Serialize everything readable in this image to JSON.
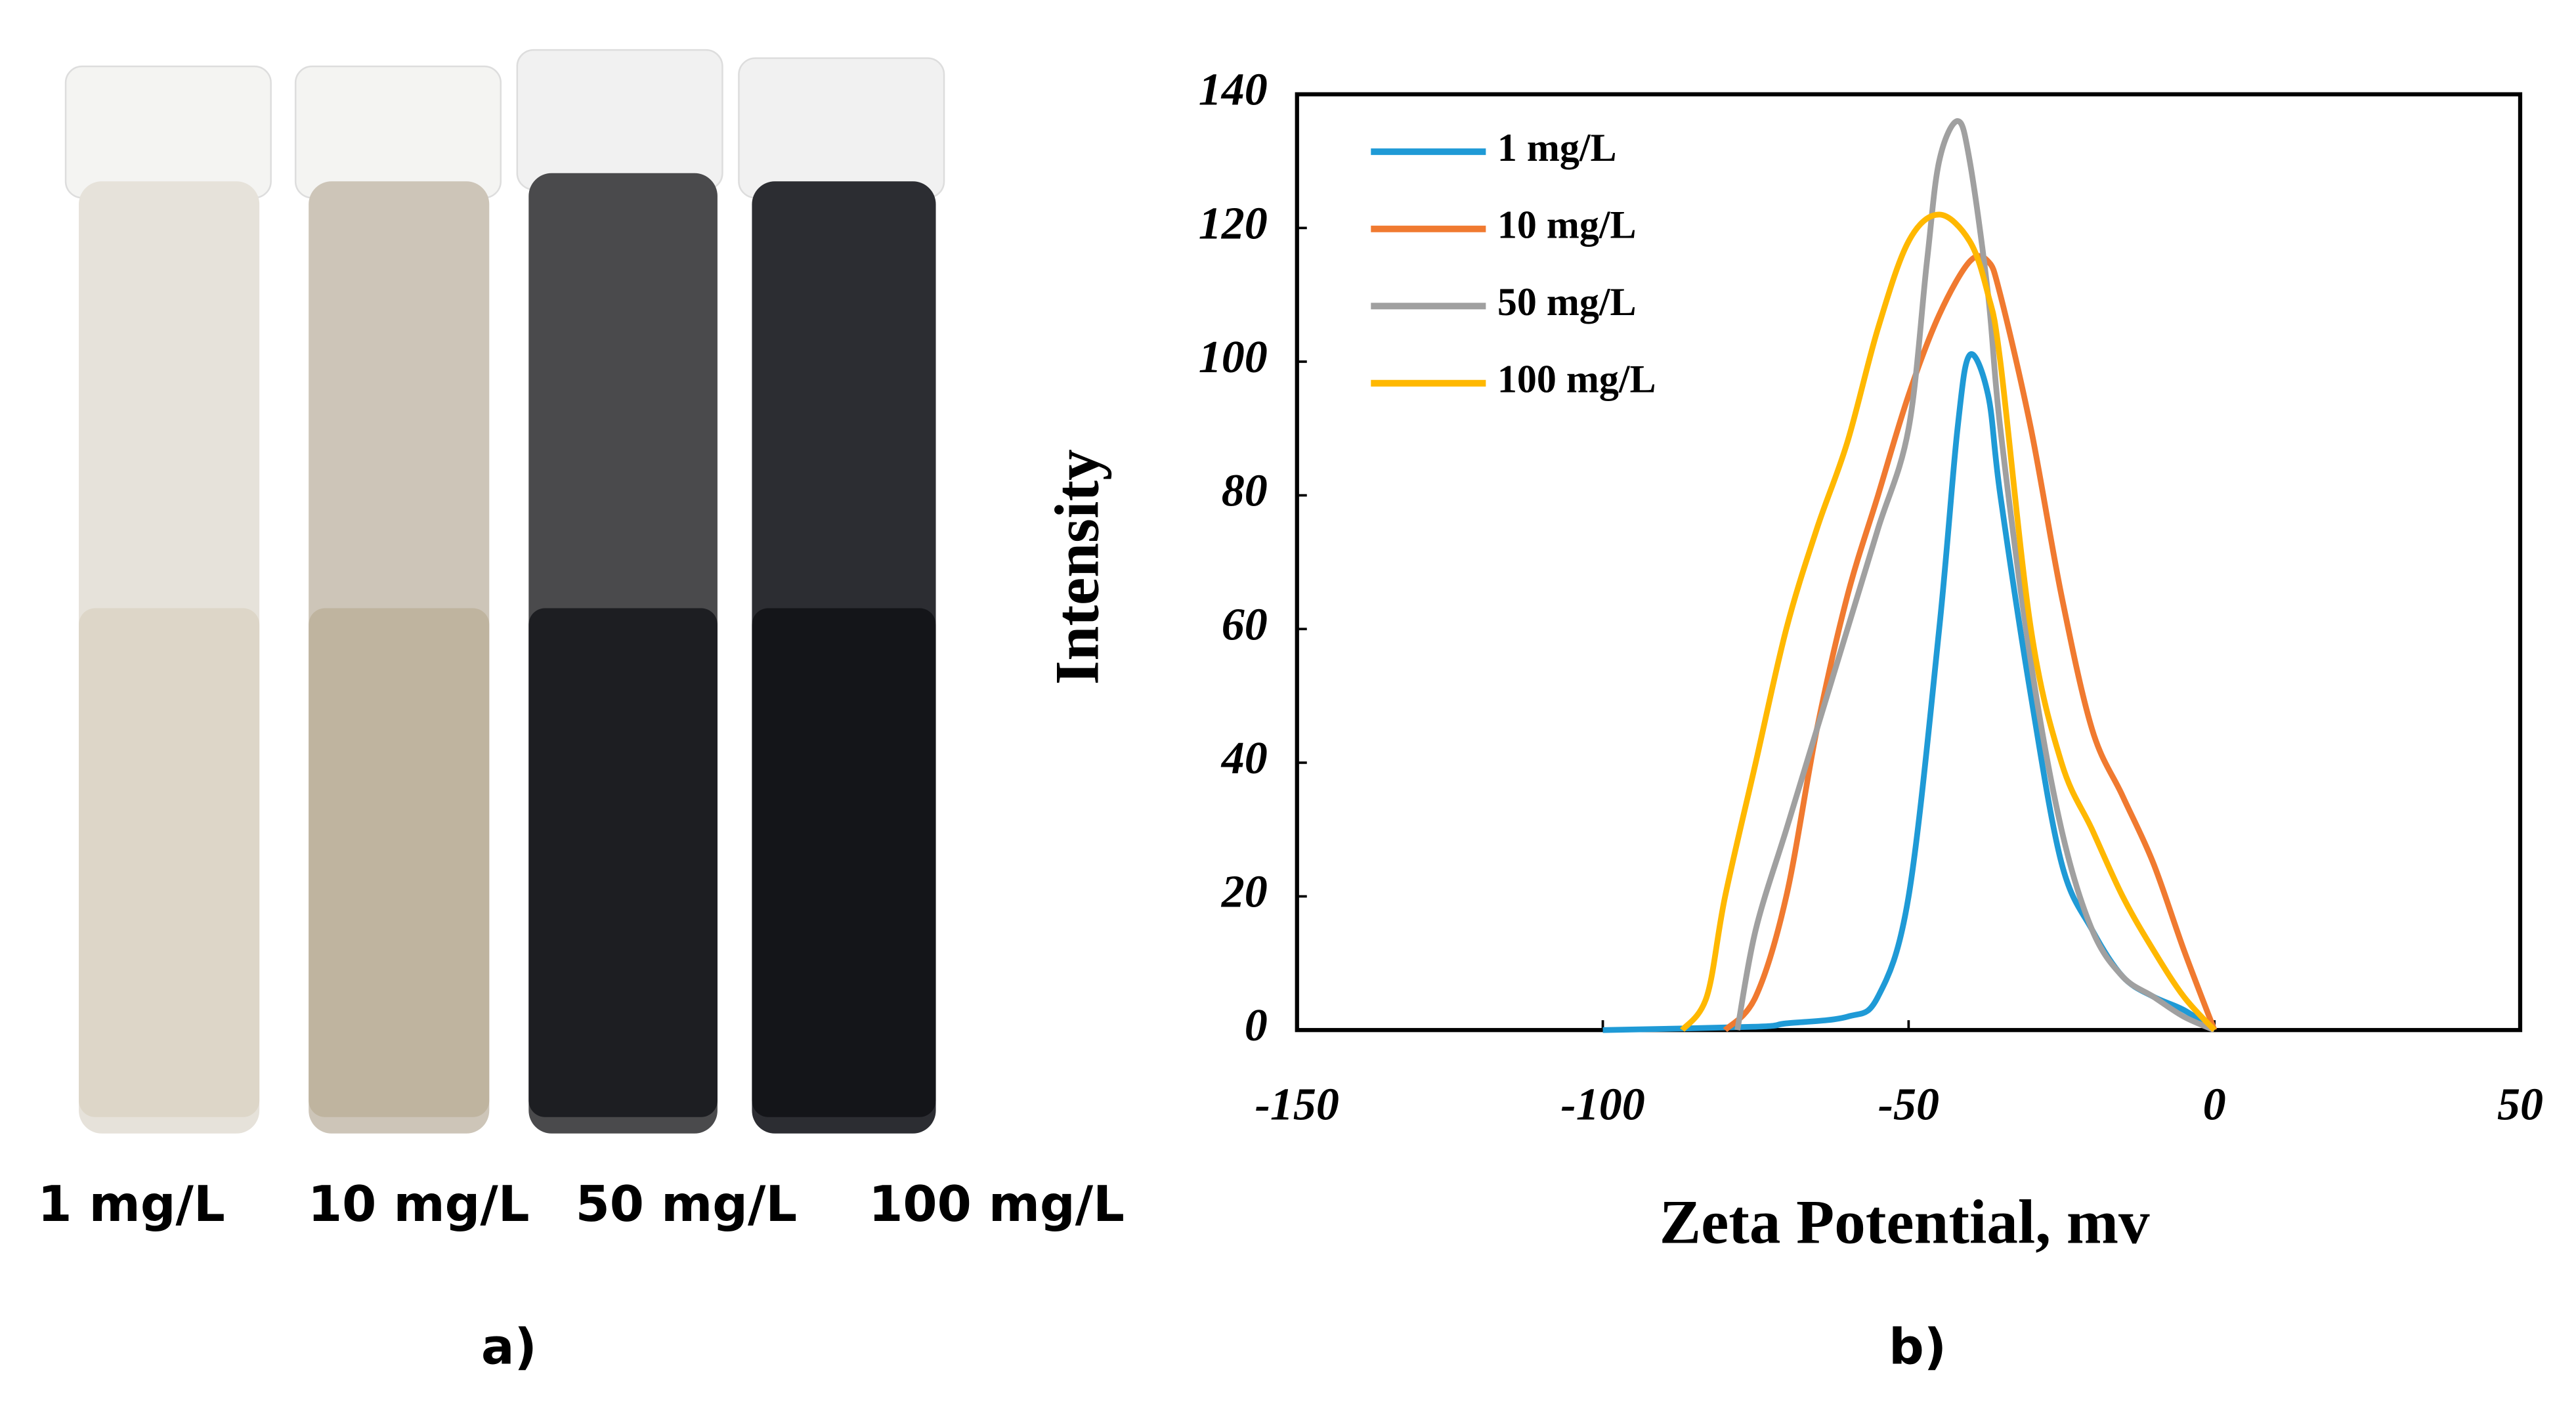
{
  "panel_a": {
    "labels": [
      "1 mg/L",
      "10 mg/L",
      "50 mg/L",
      "100 mg/L"
    ],
    "caption": "a)"
  },
  "chart_data": {
    "type": "line",
    "caption": "b)",
    "xlabel": "Zeta Potential, mv",
    "ylabel": "Intensity",
    "xlim": [
      -150,
      50
    ],
    "xticks": [
      -150,
      -100,
      -50,
      0,
      50
    ],
    "ylim": [
      0,
      140
    ],
    "yticks": [
      0,
      20,
      40,
      60,
      80,
      100,
      120,
      140
    ],
    "grid": false,
    "legend": "upper left",
    "series": [
      {
        "name": "1 mg/L",
        "color": "#1f9ad6",
        "x": [
          -100,
          -75,
          -70,
          -60,
          -55,
          -50,
          -45,
          -42,
          -40,
          -37,
          -35,
          -30,
          -25,
          -20,
          -15,
          -10,
          -5,
          0
        ],
        "values": [
          0,
          0.5,
          1,
          2,
          5,
          20,
          60,
          90,
          101,
          95,
          80,
          50,
          25,
          15,
          8,
          5,
          3,
          0
        ]
      },
      {
        "name": "10 mg/L",
        "color": "#f07a30",
        "x": [
          -80,
          -75,
          -70,
          -65,
          -60,
          -55,
          -50,
          -45,
          -40,
          -37,
          -35,
          -30,
          -25,
          -20,
          -15,
          -10,
          -5,
          0
        ],
        "values": [
          0,
          5,
          20,
          45,
          65,
          80,
          95,
          107,
          115,
          115,
          110,
          90,
          65,
          45,
          35,
          25,
          12,
          0
        ]
      },
      {
        "name": "50 mg/L",
        "color": "#a0a0a0",
        "x": [
          -78,
          -75,
          -70,
          -65,
          -60,
          -55,
          -50,
          -47,
          -45,
          -42,
          -40,
          -37,
          -35,
          -30,
          -25,
          -20,
          -15,
          -10,
          -5,
          0
        ],
        "values": [
          0,
          15,
          30,
          45,
          60,
          75,
          90,
          115,
          130,
          136,
          130,
          110,
          90,
          55,
          30,
          15,
          8,
          5,
          2,
          0
        ]
      },
      {
        "name": "100 mg/L",
        "color": "#ffb800",
        "x": [
          -87,
          -83,
          -80,
          -75,
          -70,
          -65,
          -60,
          -55,
          -50,
          -45,
          -40,
          -37,
          -35,
          -30,
          -25,
          -20,
          -15,
          -10,
          -5,
          0
        ],
        "values": [
          0,
          5,
          20,
          40,
          60,
          75,
          88,
          105,
          118,
          122,
          118,
          110,
          100,
          60,
          40,
          30,
          20,
          12,
          5,
          0
        ]
      }
    ]
  }
}
